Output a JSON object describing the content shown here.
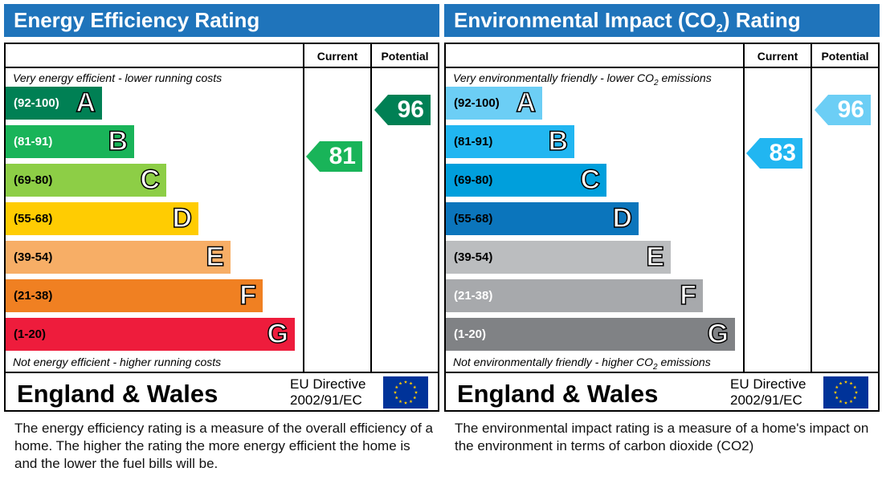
{
  "chart_data": [
    {
      "type": "bar",
      "title": "Energy Efficiency Rating",
      "columns": [
        "Current",
        "Potential"
      ],
      "top_note": "Very energy efficient - lower running costs",
      "bottom_note": "Not energy efficient - higher running costs",
      "bands": [
        {
          "range": "(92-100)",
          "letter": "A",
          "color": "#008054",
          "text_color": "#ffffff"
        },
        {
          "range": "(81-91)",
          "letter": "B",
          "color": "#19b459",
          "text_color": "#ffffff"
        },
        {
          "range": "(69-80)",
          "letter": "C",
          "color": "#8dce46",
          "text_color": "#000000"
        },
        {
          "range": "(55-68)",
          "letter": "D",
          "color": "#ffcc02",
          "text_color": "#000000"
        },
        {
          "range": "(39-54)",
          "letter": "E",
          "color": "#f7ae66",
          "text_color": "#000000"
        },
        {
          "range": "(21-38)",
          "letter": "F",
          "color": "#f08022",
          "text_color": "#000000"
        },
        {
          "range": "(1-20)",
          "letter": "G",
          "color": "#ee1c3c",
          "text_color": "#000000"
        }
      ],
      "current": {
        "value": 81,
        "color": "#19b459"
      },
      "potential": {
        "value": 96,
        "color": "#008054"
      },
      "footer": {
        "region": "England & Wales",
        "directive_line1": "EU Directive",
        "directive_line2": "2002/91/EC"
      },
      "description": "The energy efficiency rating is a measure of the overall efficiency of a home.  The higher the rating the more energy efficient the home is and the lower the fuel bills will be."
    },
    {
      "type": "bar",
      "title": "Environmental Impact (CO2) Rating",
      "columns": [
        "Current",
        "Potential"
      ],
      "top_note": "Very environmentally friendly - lower CO2 emissions",
      "bottom_note": "Not environmentally friendly - higher CO2 emissions",
      "bands": [
        {
          "range": "(92-100)",
          "letter": "A",
          "color": "#6ccef5",
          "text_color": "#000000"
        },
        {
          "range": "(81-91)",
          "letter": "B",
          "color": "#21b6f1",
          "text_color": "#000000"
        },
        {
          "range": "(69-80)",
          "letter": "C",
          "color": "#009fdc",
          "text_color": "#000000"
        },
        {
          "range": "(55-68)",
          "letter": "D",
          "color": "#0b75bc",
          "text_color": "#000000"
        },
        {
          "range": "(39-54)",
          "letter": "E",
          "color": "#bbbdbf",
          "text_color": "#000000"
        },
        {
          "range": "(21-38)",
          "letter": "F",
          "color": "#a7a9ac",
          "text_color": "#ffffff"
        },
        {
          "range": "(1-20)",
          "letter": "G",
          "color": "#808285",
          "text_color": "#ffffff"
        }
      ],
      "current": {
        "value": 83,
        "color": "#21b6f1"
      },
      "potential": {
        "value": 96,
        "color": "#6ccef5"
      },
      "footer": {
        "region": "England & Wales",
        "directive_line1": "EU Directive",
        "directive_line2": "2002/91/EC"
      },
      "description": "The environmental impact rating is a measure of a home's impact on the environment in terms of carbon dioxide (CO2)"
    }
  ],
  "flag_icon": "eu-flag-icon",
  "flag_colors": {
    "field": "#003399",
    "stars": "#ffcc00"
  }
}
